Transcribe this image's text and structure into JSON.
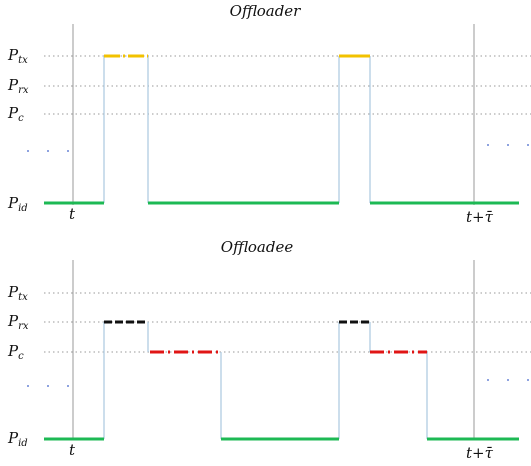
{
  "diagram": {
    "panels": [
      {
        "title": "Offloader",
        "levels": [
          {
            "main": "P",
            "sub": "tx"
          },
          {
            "main": "P",
            "sub": "rx"
          },
          {
            "main": "P",
            "sub": "c"
          },
          {
            "main": "P",
            "sub": "id"
          }
        ],
        "time_labels": {
          "start": "t",
          "end": "t+τ̄"
        },
        "colors": {
          "idle": "#1db954",
          "tx": "#f2c200",
          "guide": "#aac8e0",
          "marker": "#999999",
          "dots": "#6a86d6"
        }
      },
      {
        "title": "Offloadee",
        "levels": [
          {
            "main": "P",
            "sub": "tx"
          },
          {
            "main": "P",
            "sub": "rx"
          },
          {
            "main": "P",
            "sub": "c"
          },
          {
            "main": "P",
            "sub": "id"
          }
        ],
        "time_labels": {
          "start": "t",
          "end": "t+τ̄"
        },
        "colors": {
          "idle": "#1db954",
          "rx": "#111111",
          "compute": "#e01515",
          "guide": "#aac8e0",
          "marker": "#999999",
          "dots": "#6a86d6"
        }
      }
    ]
  }
}
